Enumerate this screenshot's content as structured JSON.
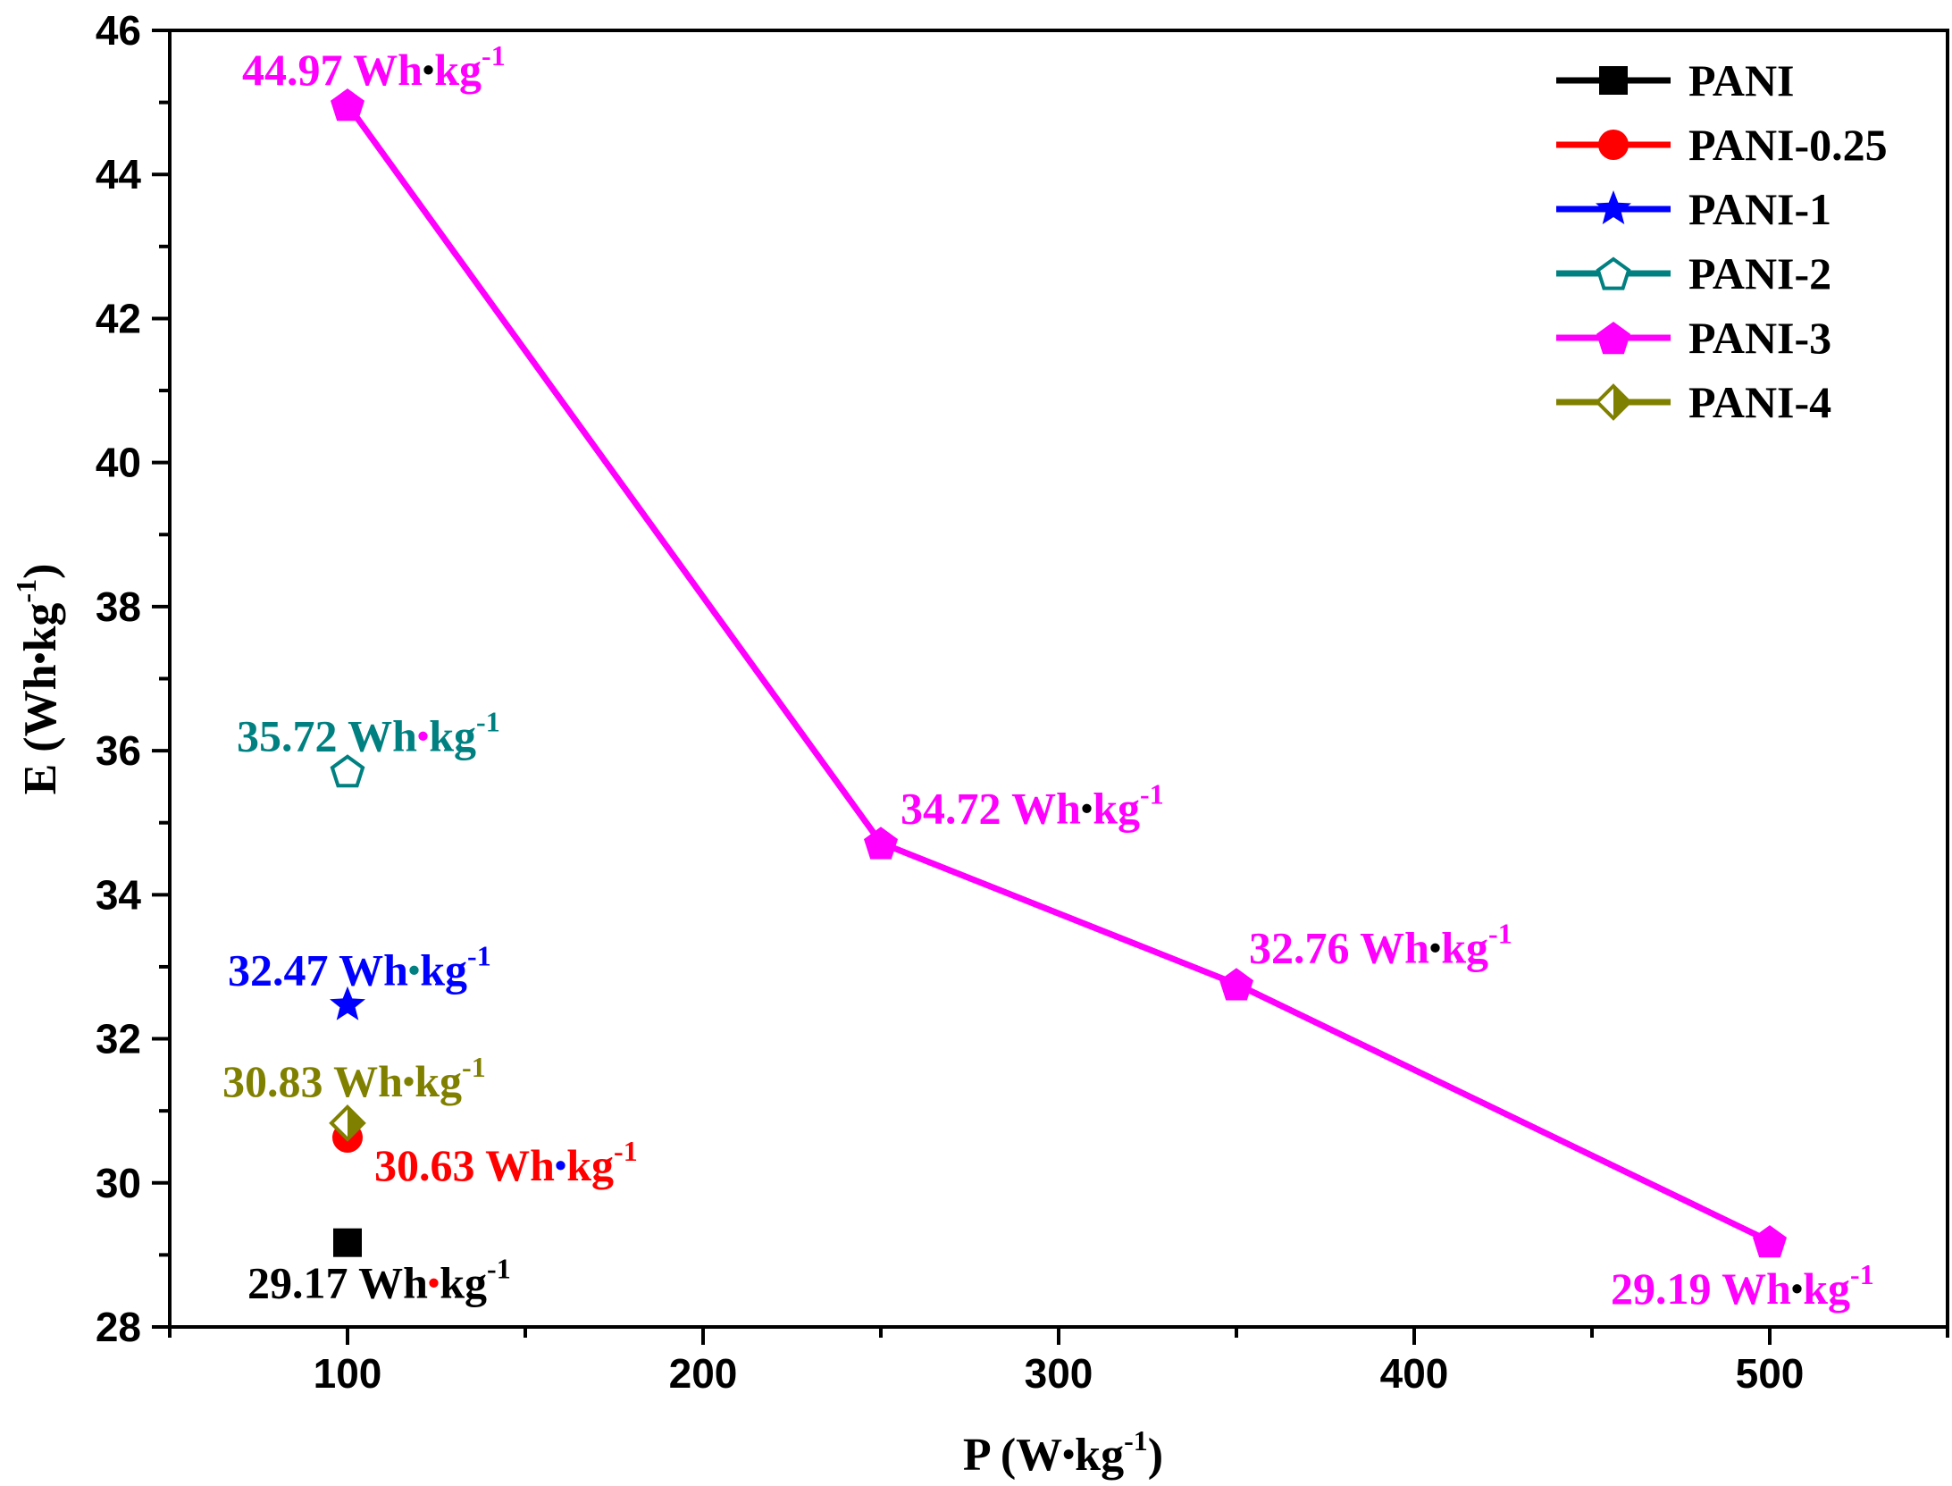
{
  "chart_data": {
    "type": "scatter",
    "title": "",
    "xlabel": {
      "text": "P (W",
      "dot": "•",
      "unit": "kg",
      "sup": "-1",
      "close": ")"
    },
    "ylabel": {
      "text": "E (Wh",
      "dot": "•",
      "unit": "kg",
      "sup": "-1",
      "close": ")"
    },
    "xlim": [
      50,
      550
    ],
    "ylim": [
      28,
      46
    ],
    "x_major_ticks": [
      100,
      200,
      300,
      400,
      500
    ],
    "x_minor_ticks": [
      50,
      150,
      250,
      350,
      450,
      550
    ],
    "y_major_ticks": [
      28,
      30,
      32,
      34,
      36,
      38,
      40,
      42,
      44,
      46
    ],
    "y_minor_ticks": [
      29,
      31,
      33,
      35,
      37,
      39,
      41,
      43,
      45
    ],
    "legend_position": "top-right",
    "series": [
      {
        "name": "PANI",
        "color": "#000000",
        "marker": "square",
        "points": [
          {
            "x": 100,
            "y": 29.17
          }
        ]
      },
      {
        "name": "PANI-0.25",
        "color": "#ff0000",
        "marker": "circle",
        "points": [
          {
            "x": 100,
            "y": 30.63
          }
        ]
      },
      {
        "name": "PANI-1",
        "color": "#0000ff",
        "marker": "star",
        "points": [
          {
            "x": 100,
            "y": 32.47
          }
        ]
      },
      {
        "name": "PANI-2",
        "color": "#008080",
        "marker": "pentagon-open",
        "points": [
          {
            "x": 100,
            "y": 35.72
          }
        ]
      },
      {
        "name": "PANI-3",
        "color": "#ff00ff",
        "marker": "pentagon",
        "line": true,
        "points": [
          {
            "x": 100,
            "y": 44.97
          },
          {
            "x": 250,
            "y": 34.72
          },
          {
            "x": 350,
            "y": 32.76
          },
          {
            "x": 500,
            "y": 29.19
          }
        ]
      },
      {
        "name": "PANI-4",
        "color": "#808000",
        "marker": "diamond-half",
        "points": [
          {
            "x": 100,
            "y": 30.83
          }
        ]
      }
    ],
    "annotations": [
      {
        "id": "pani",
        "value": "29.17",
        "unit": "Wh",
        "dot": "•",
        "kg": "kg",
        "sup": "-1",
        "color": "#000000",
        "dot_color": "#ff0000",
        "anchor": [
          100,
          29.17
        ],
        "offset": [
          -112,
          62
        ]
      },
      {
        "id": "pani025",
        "value": "30.63",
        "unit": "Wh",
        "dot": "•",
        "kg": "kg",
        "sup": "-1",
        "color": "#ff0000",
        "dot_color": "#0000ff",
        "anchor": [
          100,
          30.63
        ],
        "offset": [
          30,
          48
        ]
      },
      {
        "id": "pani4",
        "value": "30.83",
        "unit": "Wh",
        "dot": "•",
        "kg": "kg",
        "sup": "-1",
        "color": "#808000",
        "dot_color": "#808000",
        "anchor": [
          100,
          30.83
        ],
        "offset": [
          -140,
          -30
        ]
      },
      {
        "id": "pani1",
        "value": "32.47",
        "unit": "Wh",
        "dot": "•",
        "kg": "kg",
        "sup": "-1",
        "color": "#0000ff",
        "dot_color": "#008080",
        "anchor": [
          100,
          32.47
        ],
        "offset": [
          -134,
          -22
        ]
      },
      {
        "id": "pani2",
        "value": "35.72",
        "unit": "Wh",
        "dot": "•",
        "kg": "kg",
        "sup": "-1",
        "color": "#008080",
        "dot_color": "#ff00ff",
        "anchor": [
          100,
          35.72
        ],
        "offset": [
          -124,
          -22
        ]
      },
      {
        "id": "pani3a",
        "value": "44.97",
        "unit": "Wh",
        "dot": "•",
        "kg": "kg",
        "sup": "-1",
        "color": "#ff00ff",
        "dot_color": "#000000",
        "anchor": [
          100,
          44.97
        ],
        "offset": [
          -118,
          -22
        ]
      },
      {
        "id": "pani3b",
        "value": "34.72",
        "unit": "Wh",
        "dot": "•",
        "kg": "kg",
        "sup": "-1",
        "color": "#ff00ff",
        "dot_color": "#000000",
        "anchor": [
          250,
          34.72
        ],
        "offset": [
          22,
          -22
        ]
      },
      {
        "id": "pani3c",
        "value": "32.76",
        "unit": "Wh",
        "dot": "•",
        "kg": "kg",
        "sup": "-1",
        "color": "#ff00ff",
        "dot_color": "#000000",
        "anchor": [
          350,
          32.76
        ],
        "offset": [
          14,
          -24
        ]
      },
      {
        "id": "pani3d",
        "value": "29.19",
        "unit": "Wh",
        "dot": "•",
        "kg": "kg",
        "sup": "-1",
        "color": "#ff00ff",
        "dot_color": "#000000",
        "anchor": [
          500,
          29.19
        ],
        "offset": [
          -178,
          70
        ]
      }
    ]
  }
}
